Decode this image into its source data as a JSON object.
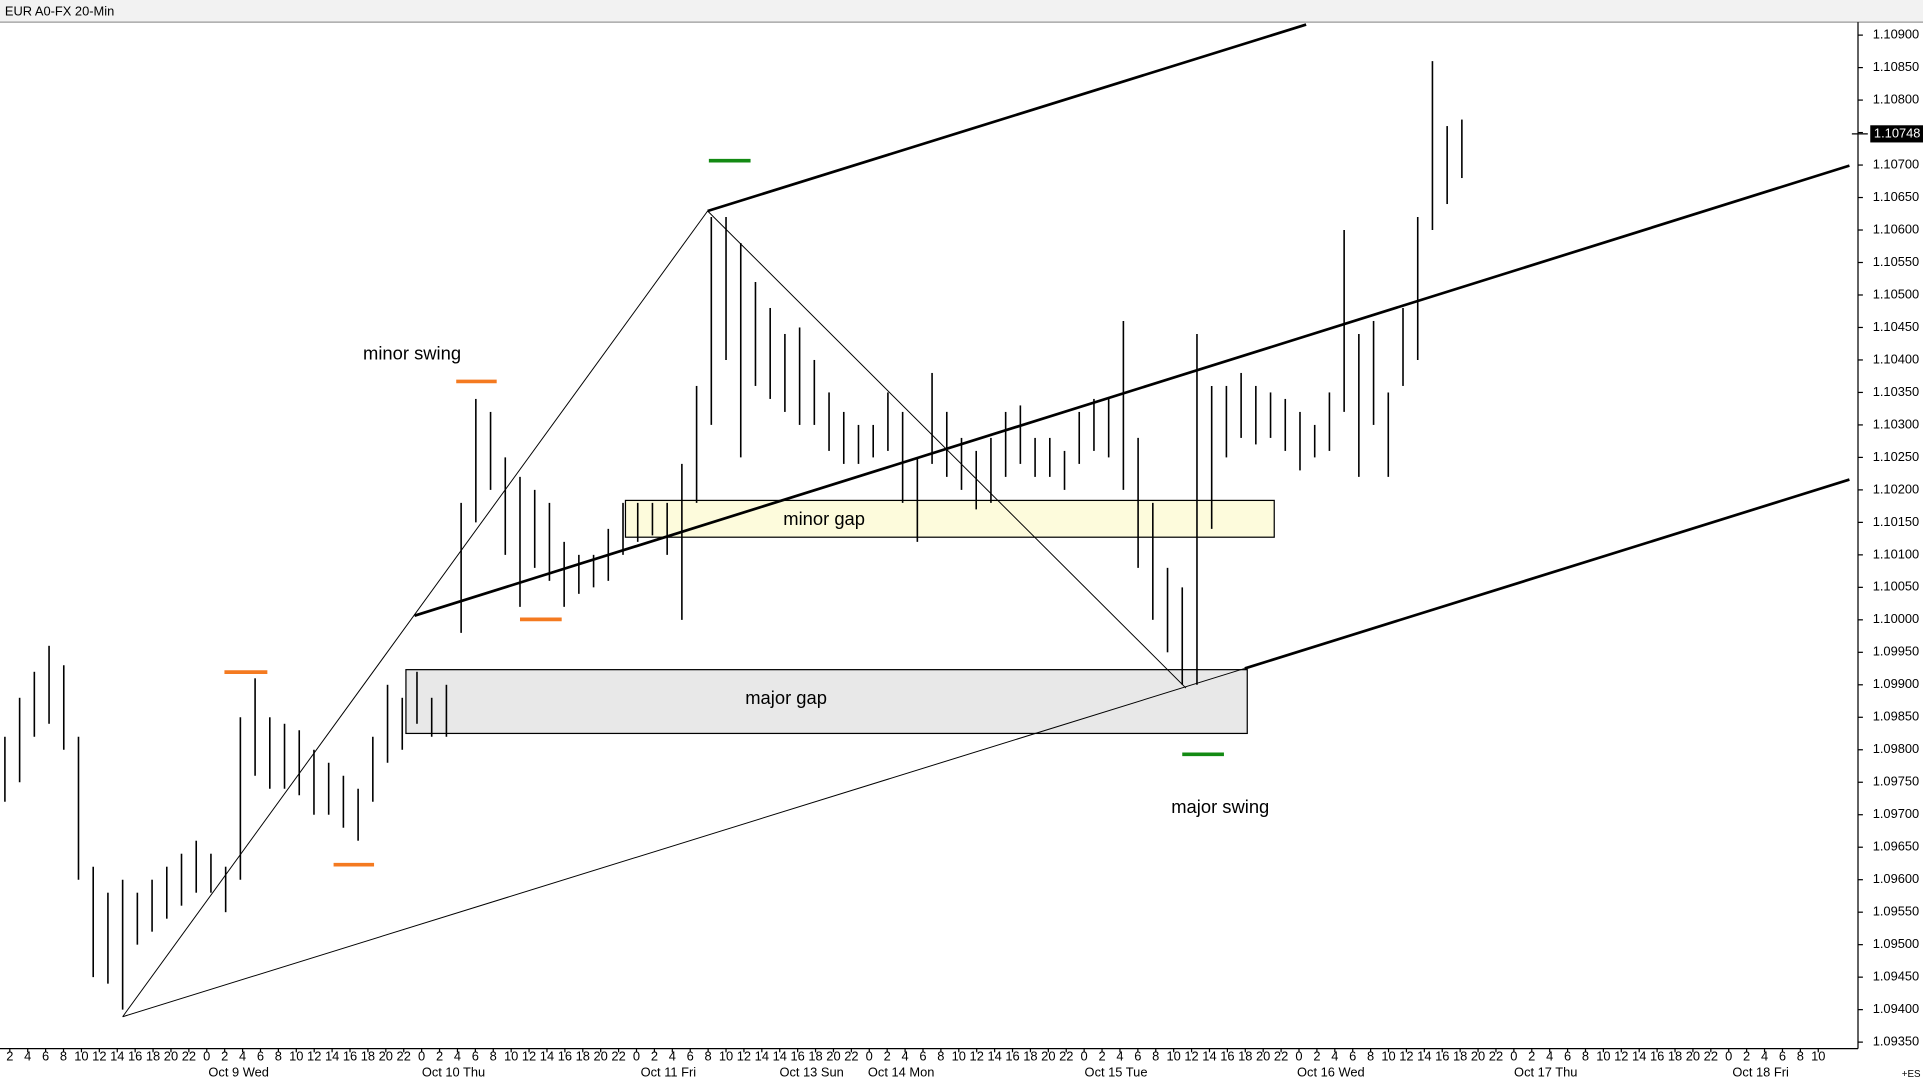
{
  "header": {
    "title": "EUR A0-FX 20-Min",
    "corner": "+ES"
  },
  "chart_data": {
    "type": "range-bar",
    "color": "#000000",
    "high": [
      1.0982,
      1.0988,
      1.0992,
      1.0996,
      1.0993,
      1.0982,
      1.0962,
      1.0958,
      1.096,
      1.0958,
      1.096,
      1.0962,
      1.0964,
      1.0966,
      1.0964,
      1.0962,
      1.0985,
      1.0991,
      1.0985,
      1.0984,
      1.0983,
      1.098,
      1.0978,
      1.0976,
      1.0974,
      1.0982,
      1.099,
      1.0988,
      1.0992,
      1.0988,
      1.099,
      1.1018,
      1.1034,
      1.1032,
      1.1025,
      1.1022,
      1.102,
      1.1018,
      1.1012,
      1.101,
      1.101,
      1.1014,
      1.1018,
      1.1018,
      1.1018,
      1.1018,
      1.1024,
      1.1036,
      1.1062,
      1.1062,
      1.1058,
      1.1052,
      1.1048,
      1.1044,
      1.1045,
      1.104,
      1.1035,
      1.1032,
      1.103,
      1.103,
      1.1035,
      1.1032,
      1.1025,
      1.1038,
      1.1032,
      1.1028,
      1.1026,
      1.1028,
      1.1032,
      1.1033,
      1.1028,
      1.1028,
      1.1026,
      1.1032,
      1.1034,
      1.1034,
      1.1046,
      1.1028,
      1.1018,
      1.1008,
      1.1005,
      1.1044,
      1.1036,
      1.1036,
      1.1038,
      1.1036,
      1.1035,
      1.1034,
      1.1032,
      1.103,
      1.1035,
      1.106,
      1.1044,
      1.1046,
      1.1035,
      1.1048,
      1.1062,
      1.1086,
      1.1076,
      1.1077
    ],
    "low": [
      1.0972,
      1.0975,
      1.0982,
      1.0984,
      1.098,
      1.096,
      1.0945,
      1.0944,
      1.094,
      1.095,
      1.0952,
      1.0954,
      1.0956,
      1.0958,
      1.0958,
      1.0955,
      1.096,
      1.0976,
      1.0974,
      1.0974,
      1.0973,
      1.097,
      1.097,
      1.0968,
      1.0966,
      1.0972,
      1.0978,
      1.098,
      1.0984,
      1.0982,
      1.0982,
      1.0998,
      1.1015,
      1.102,
      1.101,
      1.1002,
      1.1008,
      1.1006,
      1.1002,
      1.1004,
      1.1005,
      1.1006,
      1.101,
      1.1012,
      1.1013,
      1.101,
      1.1,
      1.1018,
      1.103,
      1.104,
      1.1025,
      1.1036,
      1.1034,
      1.1032,
      1.103,
      1.103,
      1.1026,
      1.1024,
      1.1024,
      1.1025,
      1.1026,
      1.1018,
      1.1012,
      1.1024,
      1.1022,
      1.102,
      1.1017,
      1.1018,
      1.1022,
      1.1024,
      1.1022,
      1.1022,
      1.102,
      1.1024,
      1.1026,
      1.1025,
      1.102,
      1.1008,
      1.1,
      1.0995,
      1.099,
      1.099,
      1.1014,
      1.1025,
      1.1028,
      1.1027,
      1.1028,
      1.1026,
      1.1023,
      1.1025,
      1.1026,
      1.1032,
      1.1022,
      1.103,
      1.1022,
      1.1036,
      1.104,
      1.106,
      1.1064,
      1.1068
    ],
    "last_price": 1.10748,
    "ylim": [
      1.0934,
      1.1092
    ],
    "yticks": [
      {
        "value": 1.0935,
        "label": "1.09350"
      },
      {
        "value": 1.094,
        "label": "1.09400"
      },
      {
        "value": 1.0945,
        "label": "1.09450"
      },
      {
        "value": 1.095,
        "label": "1.09500"
      },
      {
        "value": 1.0955,
        "label": "1.09550"
      },
      {
        "value": 1.096,
        "label": "1.09600"
      },
      {
        "value": 1.0965,
        "label": "1.09650"
      },
      {
        "value": 1.097,
        "label": "1.09700"
      },
      {
        "value": 1.0975,
        "label": "1.09750"
      },
      {
        "value": 1.098,
        "label": "1.09800"
      },
      {
        "value": 1.0985,
        "label": "1.09850"
      },
      {
        "value": 1.099,
        "label": "1.09900"
      },
      {
        "value": 1.0995,
        "label": "1.09950"
      },
      {
        "value": 1.1,
        "label": "1.10000"
      },
      {
        "value": 1.1005,
        "label": "1.10050"
      },
      {
        "value": 1.101,
        "label": "1.10100"
      },
      {
        "value": 1.1015,
        "label": "1.10150"
      },
      {
        "value": 1.102,
        "label": "1.10200"
      },
      {
        "value": 1.1025,
        "label": "1.10250"
      },
      {
        "value": 1.103,
        "label": "1.10300"
      },
      {
        "value": 1.1035,
        "label": "1.10350"
      },
      {
        "value": 1.104,
        "label": "1.10400"
      },
      {
        "value": 1.1045,
        "label": "1.10450"
      },
      {
        "value": 1.105,
        "label": "1.10500"
      },
      {
        "value": 1.1055,
        "label": "1.10550"
      },
      {
        "value": 1.106,
        "label": "1.10600"
      },
      {
        "value": 1.1065,
        "label": "1.10650"
      },
      {
        "value": 1.107,
        "label": "1.10700"
      },
      {
        "value": 1.1075,
        "label": "1.10750"
      },
      {
        "value": 1.108,
        "label": "1.10800"
      },
      {
        "value": 1.1085,
        "label": "1.10850"
      },
      {
        "value": 1.109,
        "label": "1.10900"
      }
    ],
    "x_hour_labels": [
      2,
      4,
      6,
      8,
      10,
      12,
      14,
      16,
      18,
      20,
      22,
      0,
      2,
      4,
      6,
      8,
      10,
      12,
      14,
      16,
      18,
      20,
      22,
      0,
      2,
      4,
      6,
      8,
      10,
      12,
      14,
      16,
      18,
      20,
      22,
      0,
      2,
      4,
      6,
      8,
      10,
      12,
      14,
      14,
      16,
      18,
      20,
      22,
      0,
      2,
      4,
      6,
      8,
      10,
      12,
      14,
      16,
      18,
      20,
      22,
      0,
      2,
      4,
      6,
      8,
      10,
      12,
      14,
      16,
      18,
      20,
      22,
      0,
      2,
      4,
      6,
      8,
      10,
      12,
      14,
      16,
      18,
      20,
      22,
      0,
      2,
      4,
      6,
      8,
      10,
      12,
      14,
      16,
      18,
      20,
      22,
      0,
      2,
      4,
      6,
      8,
      10
    ],
    "x_date_labels": [
      "Oct 9 Wed",
      "Oct 10 Thu",
      "Oct 11 Fri",
      "Oct 13 Sun",
      "Oct 14 Mon",
      "Oct 15 Tue",
      "Oct 16 Wed",
      "Oct 17 Thu",
      "Oct 18 Fri"
    ],
    "annotations": [
      "minor swing",
      "minor gap",
      "major gap",
      "major swing"
    ]
  }
}
